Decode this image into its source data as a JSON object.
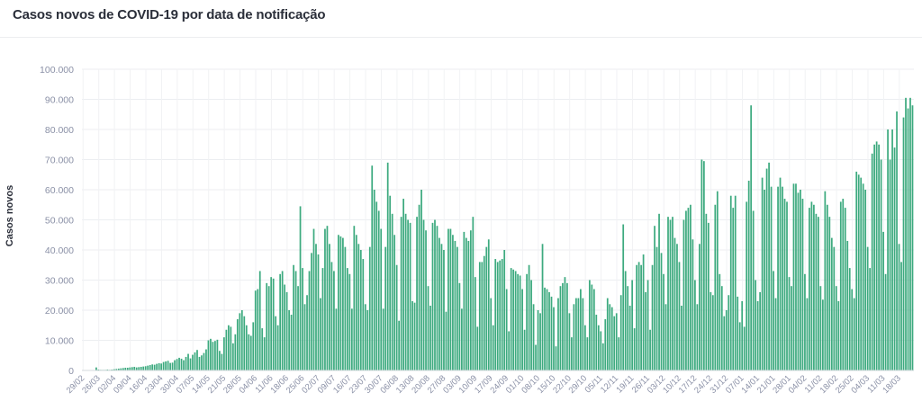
{
  "header": {
    "title": "Casos novos de COVID-19 por data de notificação"
  },
  "chart_data": {
    "type": "bar",
    "title": "Casos novos de COVID-19 por data de notificação",
    "xlabel": "",
    "ylabel": "Casos novos",
    "ylim": [
      0,
      100000
    ],
    "grid": true,
    "bar_color": "#3daa7f",
    "yticks": [
      "0",
      "10.000",
      "20.000",
      "30.000",
      "40.000",
      "50.000",
      "60.000",
      "70.000",
      "80.000",
      "90.000",
      "100.000"
    ],
    "xticks": [
      "29/02",
      "26/03",
      "02/04",
      "09/04",
      "16/04",
      "23/04",
      "30/04",
      "07/05",
      "14/05",
      "21/05",
      "28/05",
      "04/06",
      "11/06",
      "18/06",
      "25/06",
      "02/07",
      "09/07",
      "16/07",
      "23/07",
      "30/07",
      "06/08",
      "13/08",
      "20/08",
      "27/08",
      "03/09",
      "10/09",
      "17/09",
      "24/09",
      "01/10",
      "08/10",
      "15/10",
      "22/10",
      "29/10",
      "05/11",
      "12/11",
      "19/11",
      "26/11",
      "03/12",
      "10/12",
      "17/12",
      "24/12",
      "31/12",
      "07/01",
      "14/01",
      "21/01",
      "28/01",
      "04/02",
      "11/02",
      "18/02",
      "25/02",
      "04/03",
      "11/03",
      "18/03"
    ],
    "weekly_values": [
      [
        0,
        0,
        0,
        0,
        0,
        0,
        1000
      ],
      [
        300,
        200,
        200,
        200,
        300,
        200,
        300
      ],
      [
        400,
        500,
        600,
        700,
        800,
        900,
        900
      ],
      [
        1000,
        1100,
        1200,
        1000,
        1100,
        1200,
        1300
      ],
      [
        1400,
        1600,
        1800,
        2000,
        1900,
        2200,
        2400
      ],
      [
        2300,
        2800,
        3000,
        3200,
        2500,
        2600,
        3400
      ],
      [
        3800,
        4200,
        3900,
        3400,
        4500,
        5500,
        4000
      ],
      [
        5200,
        6000,
        6800,
        4500,
        5000,
        5800,
        7000
      ],
      [
        10000,
        10500,
        9500,
        9800,
        10200,
        6500,
        5500
      ],
      [
        11000,
        13500,
        15000,
        14500,
        9000,
        12000,
        17000
      ],
      [
        19000,
        20000,
        18000,
        15000,
        12000,
        11500,
        16000
      ],
      [
        26500,
        27000,
        33000,
        14000,
        11000,
        29000,
        28000
      ],
      [
        31000,
        30500,
        18000,
        15000,
        32000,
        33000,
        28500
      ],
      [
        26000,
        20000,
        18500,
        35000,
        33000,
        28000,
        54500
      ],
      [
        34000,
        22000,
        25000,
        33000,
        39000,
        47000,
        42000
      ],
      [
        38500,
        24000,
        34000,
        47000,
        48000,
        42000,
        36000
      ],
      [
        33000,
        20500,
        45000,
        44500,
        44000,
        41000,
        34000
      ],
      [
        32000,
        20500,
        48000,
        45000,
        42000,
        40000,
        37000
      ],
      [
        22000,
        20000,
        41000,
        68000,
        60000,
        56000,
        53000
      ],
      [
        47000,
        20500,
        41000,
        69000,
        58000,
        52000,
        45000
      ],
      [
        35000,
        16500,
        51000,
        57000,
        52000,
        50000,
        49000
      ],
      [
        23000,
        22500,
        51000,
        55000,
        60000,
        50000,
        46500
      ],
      [
        28000,
        21500,
        49000,
        50000,
        48000,
        44000,
        42000
      ],
      [
        40000,
        19500,
        47000,
        47000,
        45000,
        43000,
        41000
      ],
      [
        29000,
        20500,
        46000,
        44000,
        43000,
        46500,
        51000
      ],
      [
        31000,
        14500,
        36000,
        36000,
        38000,
        41000,
        43500
      ],
      [
        24000,
        15000,
        37000,
        36000,
        36500,
        37000,
        40000
      ],
      [
        27000,
        13000,
        34000,
        33500,
        33000,
        32000,
        31500
      ],
      [
        27000,
        13500,
        32000,
        35000,
        30000,
        22000,
        8500
      ],
      [
        20000,
        19000,
        42000,
        27500,
        27000,
        26000,
        24500
      ],
      [
        21000,
        8000,
        24000,
        28000,
        29000,
        31000,
        29000
      ],
      [
        19000,
        11000,
        22000,
        24000,
        24000,
        27000,
        24000
      ],
      [
        15000,
        11000,
        30000,
        28500,
        27000,
        18500,
        15000
      ],
      [
        13000,
        9000,
        17000,
        24000,
        22000,
        21000,
        18000
      ],
      [
        19000,
        11000,
        25000,
        48500,
        33000,
        28000,
        21500
      ],
      [
        30000,
        14000,
        35000,
        36000,
        35000,
        38500,
        26000
      ],
      [
        30000,
        13500,
        35000,
        48000,
        41000,
        52000,
        39000
      ],
      [
        32000,
        22000,
        51000,
        50000,
        51000,
        44000,
        42000
      ],
      [
        36000,
        21500,
        50000,
        53000,
        54000,
        55000,
        43500
      ],
      [
        30000,
        22000,
        42000,
        70000,
        69500,
        52000,
        49000
      ],
      [
        26000,
        25000,
        55000,
        59500,
        32000,
        28000,
        18000
      ],
      [
        20000,
        25000,
        58000,
        54000,
        58000,
        24500,
        16000
      ],
      [
        23000,
        14500,
        56000,
        63000,
        88000,
        53000,
        30000
      ],
      [
        23000,
        26000,
        64000,
        60000,
        67000,
        69000,
        61000
      ],
      [
        33000,
        24000,
        61000,
        64000,
        61000,
        57000,
        56000
      ],
      [
        31000,
        28000,
        62000,
        62000,
        59000,
        60000,
        57000
      ],
      [
        32000,
        24000,
        54000,
        56000,
        55000,
        52000,
        51000
      ],
      [
        28000,
        23500,
        59500,
        55000,
        51000,
        44000,
        41000
      ],
      [
        28000,
        23000,
        56000,
        57000,
        54000,
        43000,
        34000
      ],
      [
        27000,
        24000,
        66000,
        65000,
        64000,
        62000,
        60000
      ],
      [
        41000,
        34000,
        72000,
        75000,
        76000,
        75000,
        70000
      ],
      [
        46000,
        32000,
        80000,
        70000,
        80000,
        74000,
        86000
      ],
      [
        42000,
        36000,
        84000,
        90500,
        87000,
        90500,
        88000
      ]
    ]
  }
}
